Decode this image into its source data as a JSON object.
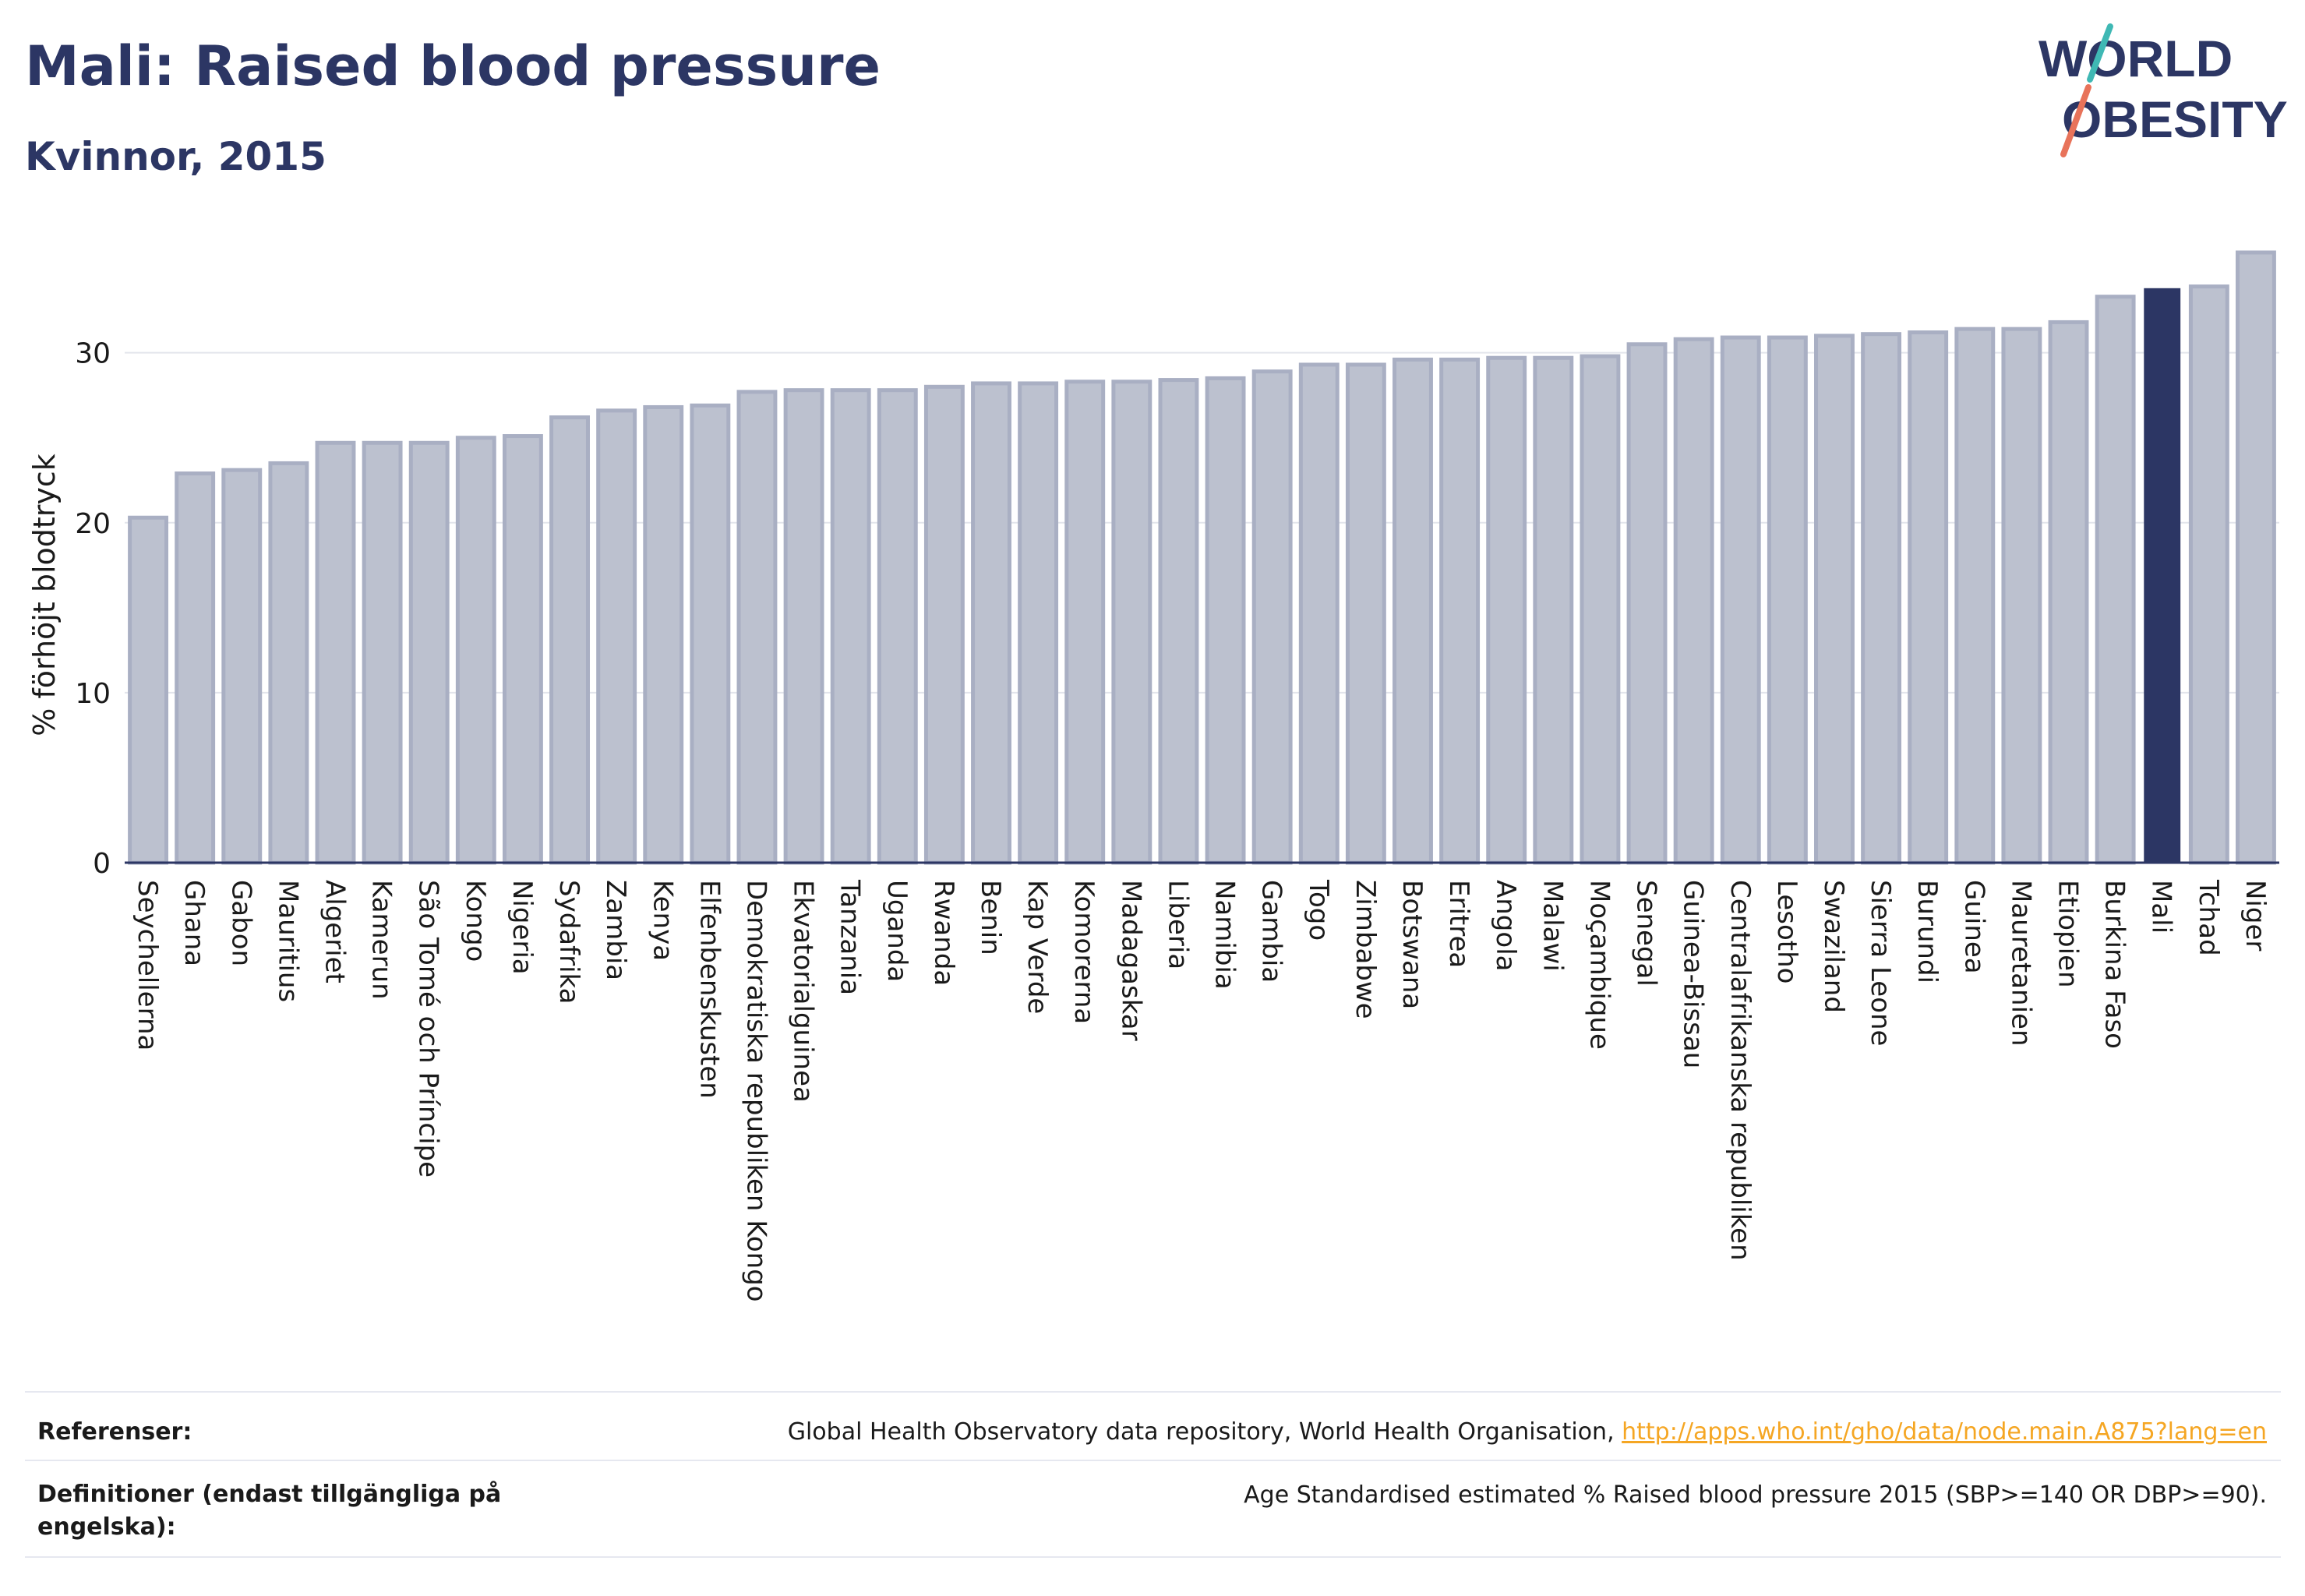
{
  "header": {
    "title": "Mali: Raised blood pressure",
    "subtitle": "Kvinnor, 2015",
    "logo_line1": "WORLD",
    "logo_line2": "OBESITY"
  },
  "colors": {
    "bar": "#bcc1cf",
    "bar_stroke": "#a9afc3",
    "highlight": "#2c3664",
    "axis": "#2c3664",
    "grid": "#e3e5ec",
    "link": "#f5a623",
    "logo_slash_teal": "#3fb8b4",
    "logo_slash_coral": "#e8735a"
  },
  "chart_data": {
    "type": "bar",
    "ylabel": "% förhöjt blodtryck",
    "ylim": [
      0,
      37
    ],
    "yticks": [
      0,
      10,
      20,
      30
    ],
    "grid": true,
    "highlight": "Mali",
    "categories": [
      "Seychellerna",
      "Ghana",
      "Gabon",
      "Mauritius",
      "Algeriet",
      "Kamerun",
      "São Tomé och Príncipe",
      "Kongo",
      "Nigeria",
      "Sydafrika",
      "Zambia",
      "Kenya",
      "Elfenbenskusten",
      "Demokratiska republiken Kongo",
      "Ekvatorialguinea",
      "Tanzania",
      "Uganda",
      "Rwanda",
      "Benin",
      "Kap Verde",
      "Komorerna",
      "Madagaskar",
      "Liberia",
      "Namibia",
      "Gambia",
      "Togo",
      "Zimbabwe",
      "Botswana",
      "Eritrea",
      "Angola",
      "Malawi",
      "Moçambique",
      "Senegal",
      "Guinea-Bissau",
      "Centralafrikanska republiken",
      "Lesotho",
      "Swaziland",
      "Sierra Leone",
      "Burundi",
      "Guinea",
      "Mauretanien",
      "Etiopien",
      "Burkina Faso",
      "Mali",
      "Tchad",
      "Niger"
    ],
    "values": [
      20.3,
      22.9,
      23.1,
      23.5,
      24.7,
      24.7,
      24.7,
      25.0,
      25.1,
      26.2,
      26.6,
      26.8,
      26.9,
      27.7,
      27.8,
      27.8,
      27.8,
      28.0,
      28.2,
      28.2,
      28.3,
      28.3,
      28.4,
      28.5,
      28.9,
      29.3,
      29.3,
      29.6,
      29.6,
      29.7,
      29.7,
      29.8,
      30.5,
      30.8,
      30.9,
      30.9,
      31.0,
      31.1,
      31.2,
      31.4,
      31.4,
      31.8,
      33.3,
      33.8,
      33.9,
      35.9
    ]
  },
  "footer": {
    "references_label": "Referenser:",
    "references_text": "Global Health Observatory data repository, World Health Organisation, ",
    "references_link": "http://apps.who.int/gho/data/node.main.A875?lang=en",
    "definitions_label": "Definitioner (endast tillgängliga på engelska):",
    "definitions_text": "Age Standardised estimated % Raised blood pressure 2015 (SBP>=140 OR DBP>=90)."
  }
}
